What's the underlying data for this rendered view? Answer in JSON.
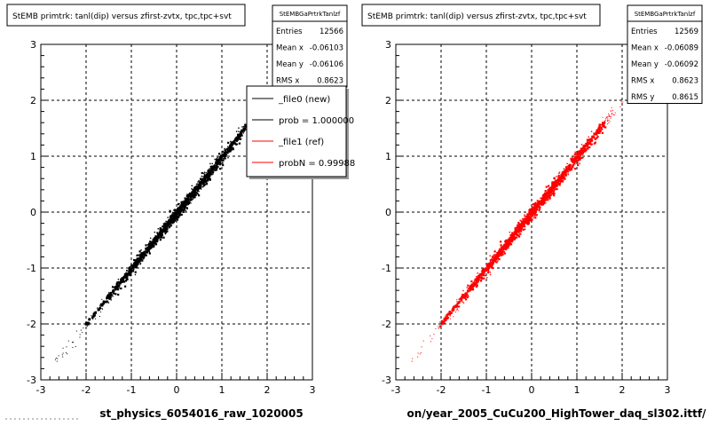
{
  "panels": [
    {
      "title": "StEMB primtrk: tanl(dip) versus zfirst-zvtx, tpc,tpc+svt",
      "stats_title": "StEMBGaPrtrkTanlzf",
      "stats": [
        {
          "label": "Entries",
          "value": "12566"
        },
        {
          "label": "Mean x",
          "value": "-0.06103"
        },
        {
          "label": "Mean y",
          "value": "-0.06106"
        },
        {
          "label": "RMS x",
          "value": "0.8623"
        }
      ],
      "file_label": "st_physics_6054016_raw_1020005",
      "color": "#000000"
    },
    {
      "title": "StEMB primtrk: tanl(dip) versus zfirst-zvtx, tpc,tpc+svt",
      "stats_title": "StEMBGaPrtrkTanlzf",
      "stats": [
        {
          "label": "Entries",
          "value": "12569"
        },
        {
          "label": "Mean x",
          "value": "-0.06089"
        },
        {
          "label": "Mean y",
          "value": "-0.06092"
        },
        {
          "label": "RMS x",
          "value": "0.8623"
        },
        {
          "label": "RMS y",
          "value": "0.8615"
        }
      ],
      "file_label": "on/year_2005_CuCu200_HighTower_daq_sl302.ittf/",
      "color": "#ff0000"
    }
  ],
  "legend": {
    "items": [
      {
        "label": "_file0 (new)",
        "color": "#000000"
      },
      {
        "label": "prob = 1.000000",
        "color": "#000000"
      },
      {
        "label": "_file1 (ref)",
        "color": "#ff0000"
      },
      {
        "label": "probN = 0.99988",
        "color": "#ff0000"
      }
    ]
  },
  "chart_data": [
    {
      "type": "scatter",
      "title": "StEMB primtrk: tanl(dip) versus zfirst-zvtx, tpc,tpc+svt",
      "xlabel": "",
      "ylabel": "",
      "xlim": [
        -3,
        3
      ],
      "ylim": [
        -3,
        3
      ],
      "xticks": [
        "-3",
        "-2",
        "-1",
        "0",
        "1",
        "2",
        "3"
      ],
      "yticks": [
        "-3",
        "-2",
        "-1",
        "0",
        "1",
        "2",
        "3"
      ],
      "grid": true,
      "series": [
        {
          "color": "#000000",
          "x": [
            -2.7,
            2.0
          ],
          "y": [
            -2.7,
            2.0
          ],
          "shape": "diagonal band y≈x"
        }
      ]
    },
    {
      "type": "scatter",
      "title": "StEMB primtrk: tanl(dip) versus zfirst-zvtx, tpc,tpc+svt",
      "xlabel": "",
      "ylabel": "",
      "xlim": [
        -3,
        3
      ],
      "ylim": [
        -3,
        3
      ],
      "xticks": [
        "-3",
        "-2",
        "-1",
        "0",
        "1",
        "2",
        "3"
      ],
      "yticks": [
        "-3",
        "-2",
        "-1",
        "0",
        "1",
        "2",
        "3"
      ],
      "grid": true,
      "series": [
        {
          "color": "#ff0000",
          "x": [
            -2.7,
            2.0
          ],
          "y": [
            -2.7,
            2.0
          ],
          "shape": "diagonal band y≈x"
        }
      ]
    }
  ]
}
